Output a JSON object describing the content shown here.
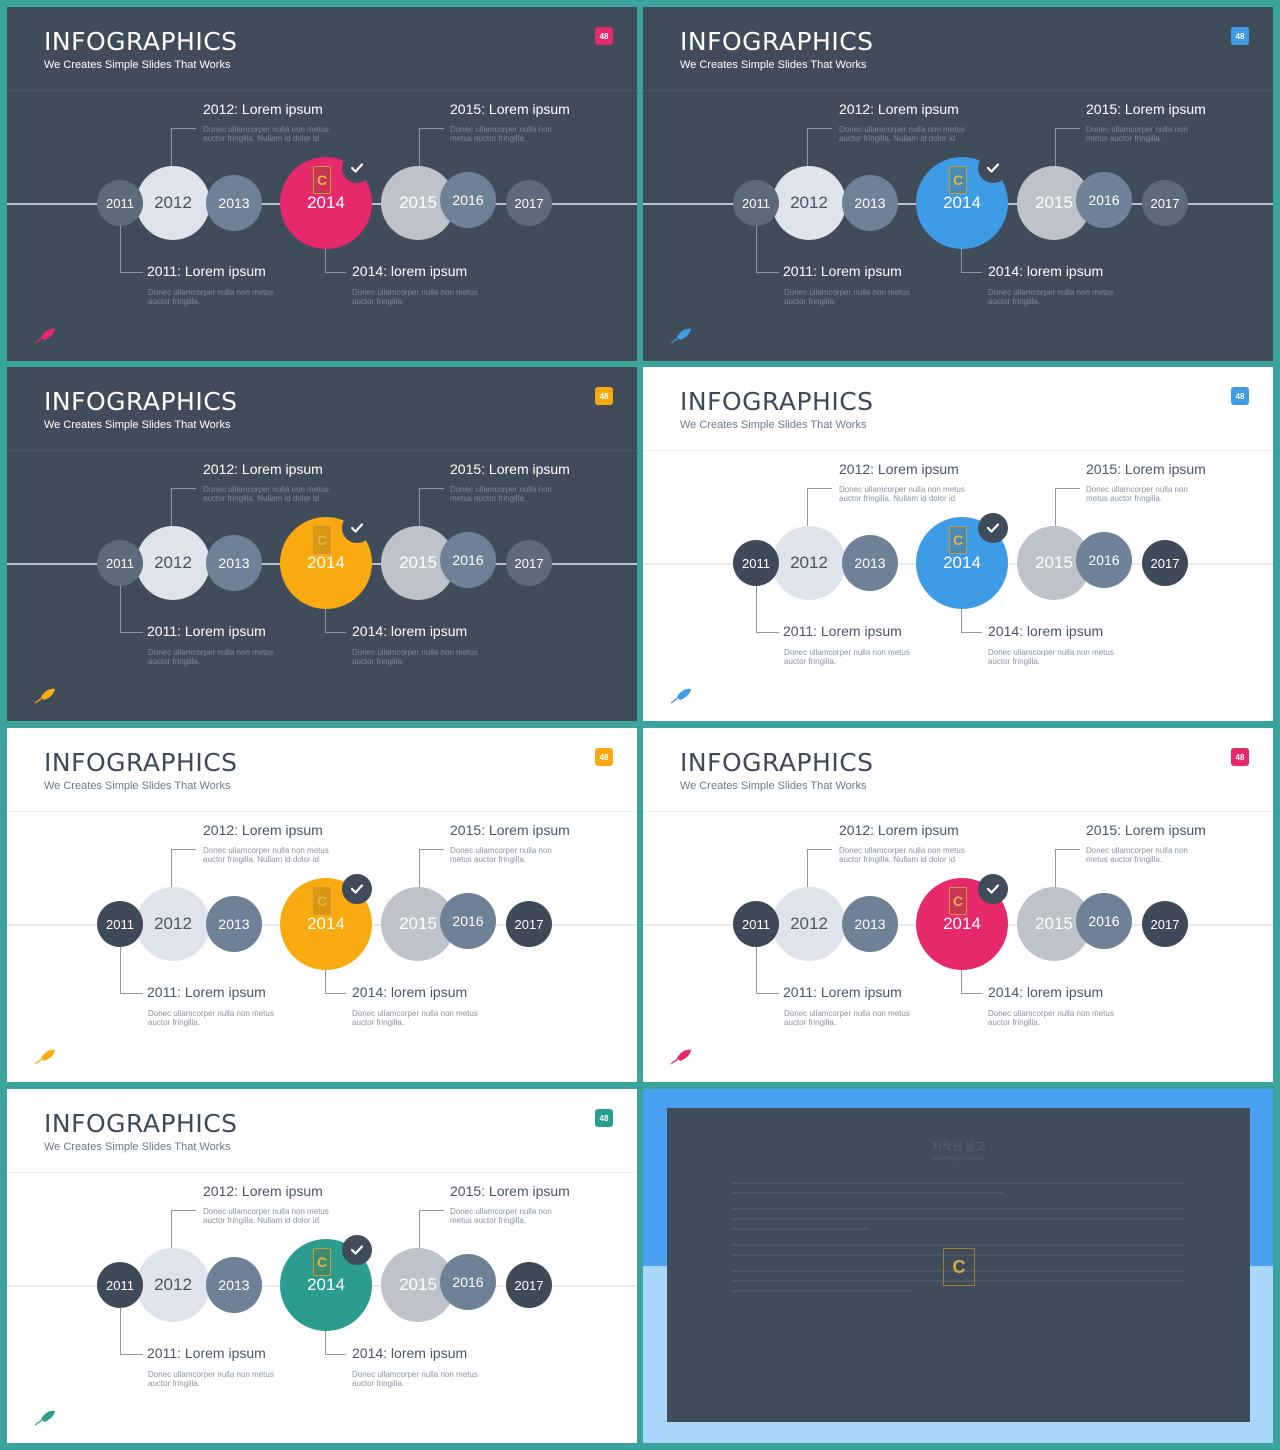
{
  "slides": [
    {
      "theme": "dark",
      "accent": "#e5296a",
      "badge": "48",
      "title": "INFOGRAPHICS",
      "subtitle": "We Creates Simple Slides That Works",
      "years": [
        "2011",
        "2012",
        "2013",
        "2014",
        "2015",
        "2016",
        "2017"
      ],
      "labels": {
        "y2012": "2012: Lorem ipsum",
        "y2015": "2015: Lorem ipsum",
        "y2011": "2011: Lorem ipsum",
        "y2014": "2014: lorem ipsum"
      },
      "descs": {
        "y2012": "Donec ullamcorper nulla non metus auctor fringilla. Nullam id dolor id",
        "y2015": "Donec ullamcorper nulla non metus auctor fringilla.",
        "y2011": "Donec ullamcorper nulla non metus auctor fringilla.",
        "y2014": "Donec ullamcorper nulla non metus auctor fringilla."
      }
    },
    {
      "theme": "dark",
      "accent": "#3e9be6",
      "badge": "48",
      "title": "INFOGRAPHICS",
      "subtitle": "We Creates Simple Slides That Works",
      "years": [
        "2011",
        "2012",
        "2013",
        "2014",
        "2015",
        "2016",
        "2017"
      ],
      "labels": {
        "y2012": "2012: Lorem ipsum",
        "y2015": "2015: Lorem ipsum",
        "y2011": "2011: Lorem ipsum",
        "y2014": "2014: lorem ipsum"
      },
      "descs": {
        "y2012": "Donec ullamcorper nulla non metus auctor fringilla. Nullam id dolor id",
        "y2015": "Donec ullamcorper nulla non metus auctor fringilla.",
        "y2011": "Donec ullamcorper nulla non metus auctor fringilla.",
        "y2014": "Donec ullamcorper nulla non metus auctor fringilla."
      }
    },
    {
      "theme": "dark",
      "accent": "#f8aa10",
      "badge": "48",
      "title": "INFOGRAPHICS",
      "subtitle": "We Creates Simple Slides That Works",
      "years": [
        "2011",
        "2012",
        "2013",
        "2014",
        "2015",
        "2016",
        "2017"
      ],
      "labels": {
        "y2012": "2012: Lorem ipsum",
        "y2015": "2015: Lorem ipsum",
        "y2011": "2011: Lorem ipsum",
        "y2014": "2014: lorem ipsum"
      },
      "descs": {
        "y2012": "Donec ullamcorper nulla non metus auctor fringilla. Nullam id dolor id",
        "y2015": "Donec ullamcorper nulla non metus auctor fringilla.",
        "y2011": "Donec ullamcorper nulla non metus auctor fringilla.",
        "y2014": "Donec ullamcorper nulla non metus auctor fringilla."
      }
    },
    {
      "theme": "light",
      "accent": "#3e9be6",
      "badge": "48",
      "title": "INFOGRAPHICS",
      "subtitle": "We Creates Simple Slides That Works",
      "years": [
        "2011",
        "2012",
        "2013",
        "2014",
        "2015",
        "2016",
        "2017"
      ],
      "labels": {
        "y2012": "2012: Lorem ipsum",
        "y2015": "2015: Lorem ipsum",
        "y2011": "2011: Lorem ipsum",
        "y2014": "2014: lorem ipsum"
      },
      "descs": {
        "y2012": "Donec ullamcorper nulla non metus auctor fringilla. Nullam id dolor id",
        "y2015": "Donec ullamcorper nulla non metus auctor fringilla.",
        "y2011": "Donec ullamcorper nulla non metus auctor fringilla.",
        "y2014": "Donec ullamcorper nulla non metus auctor fringilla."
      }
    },
    {
      "theme": "light",
      "accent": "#f8aa10",
      "badge": "48",
      "title": "INFOGRAPHICS",
      "subtitle": "We Creates Simple Slides That Works",
      "years": [
        "2011",
        "2012",
        "2013",
        "2014",
        "2015",
        "2016",
        "2017"
      ],
      "labels": {
        "y2012": "2012: Lorem ipsum",
        "y2015": "2015: Lorem ipsum",
        "y2011": "2011: Lorem ipsum",
        "y2014": "2014: lorem ipsum"
      },
      "descs": {
        "y2012": "Donec ullamcorper nulla non metus auctor fringilla. Nullam id dolor id",
        "y2015": "Donec ullamcorper nulla non metus auctor fringilla.",
        "y2011": "Donec ullamcorper nulla non metus auctor fringilla.",
        "y2014": "Donec ullamcorper nulla non metus auctor fringilla."
      }
    },
    {
      "theme": "light",
      "accent": "#e5296a",
      "badge": "48",
      "title": "INFOGRAPHICS",
      "subtitle": "We Creates Simple Slides That Works",
      "years": [
        "2011",
        "2012",
        "2013",
        "2014",
        "2015",
        "2016",
        "2017"
      ],
      "labels": {
        "y2012": "2012: Lorem ipsum",
        "y2015": "2015: Lorem ipsum",
        "y2011": "2011: Lorem ipsum",
        "y2014": "2014: lorem ipsum"
      },
      "descs": {
        "y2012": "Donec ullamcorper nulla non metus auctor fringilla. Nullam id dolor id",
        "y2015": "Donec ullamcorper nulla non metus auctor fringilla.",
        "y2011": "Donec ullamcorper nulla non metus auctor fringilla.",
        "y2014": "Donec ullamcorper nulla non metus auctor fringilla."
      }
    },
    {
      "theme": "light",
      "accent": "#2a9d8f",
      "badge": "48",
      "title": "INFOGRAPHICS",
      "subtitle": "We Creates Simple Slides That Works",
      "years": [
        "2011",
        "2012",
        "2013",
        "2014",
        "2015",
        "2016",
        "2017"
      ],
      "labels": {
        "y2012": "2012: Lorem ipsum",
        "y2015": "2015: Lorem ipsum",
        "y2011": "2011: Lorem ipsum",
        "y2014": "2014: lorem ipsum"
      },
      "descs": {
        "y2012": "Donec ullamcorper nulla non metus auctor fringilla. Nullam id dolor id",
        "y2015": "Donec ullamcorper nulla non metus auctor fringilla.",
        "y2011": "Donec ullamcorper nulla non metus auctor fringilla.",
        "y2014": "Donec ullamcorper nulla non metus auctor fringilla."
      }
    }
  ],
  "copyright": {
    "title": "저작권 공고",
    "subtitle": "Copyright Notice",
    "logo_letter": "C"
  },
  "icons": {
    "check": "check-icon",
    "rocket": "rocket-icon",
    "logo": "contents-logo"
  },
  "logo_letter": "C"
}
